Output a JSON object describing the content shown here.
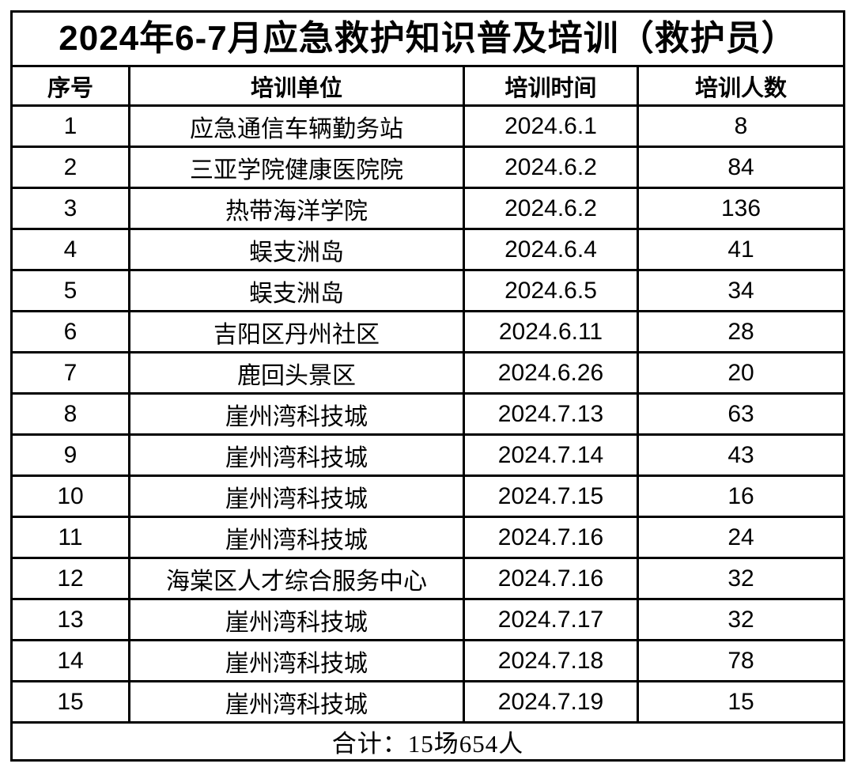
{
  "page": {
    "background_color": "#ffffff",
    "border_color": "#000000",
    "text_color": "#000000"
  },
  "table": {
    "title": "2024年6-7月应急救护知识普及培训（救护员）",
    "headers": [
      "序号",
      "培训单位",
      "培训时间",
      "培训人数"
    ],
    "rows": [
      {
        "no": "1",
        "unit": "应急通信车辆勤务站",
        "date": "2024.6.1",
        "count": "8"
      },
      {
        "no": "2",
        "unit": "三亚学院健康医院院",
        "date": "2024.6.2",
        "count": "84"
      },
      {
        "no": "3",
        "unit": "热带海洋学院",
        "date": "2024.6.2",
        "count": "136"
      },
      {
        "no": "4",
        "unit": "蜈支洲岛",
        "date": "2024.6.4",
        "count": "41"
      },
      {
        "no": "5",
        "unit": "蜈支洲岛",
        "date": "2024.6.5",
        "count": "34"
      },
      {
        "no": "6",
        "unit": "吉阳区丹州社区",
        "date": "2024.6.11",
        "count": "28"
      },
      {
        "no": "7",
        "unit": "鹿回头景区",
        "date": "2024.6.26",
        "count": "20"
      },
      {
        "no": "8",
        "unit": "崖州湾科技城",
        "date": "2024.7.13",
        "count": "63"
      },
      {
        "no": "9",
        "unit": "崖州湾科技城",
        "date": "2024.7.14",
        "count": "43"
      },
      {
        "no": "10",
        "unit": "崖州湾科技城",
        "date": "2024.7.15",
        "count": "16"
      },
      {
        "no": "11",
        "unit": "崖州湾科技城",
        "date": "2024.7.16",
        "count": "24"
      },
      {
        "no": "12",
        "unit": "海棠区人才综合服务中心",
        "date": "2024.7.16",
        "count": "32"
      },
      {
        "no": "13",
        "unit": "崖州湾科技城",
        "date": "2024.7.17",
        "count": "32"
      },
      {
        "no": "14",
        "unit": "崖州湾科技城",
        "date": "2024.7.18",
        "count": "78"
      },
      {
        "no": "15",
        "unit": "崖州湾科技城",
        "date": "2024.7.19",
        "count": "15"
      }
    ],
    "footer_total": "合计：15场654人"
  }
}
